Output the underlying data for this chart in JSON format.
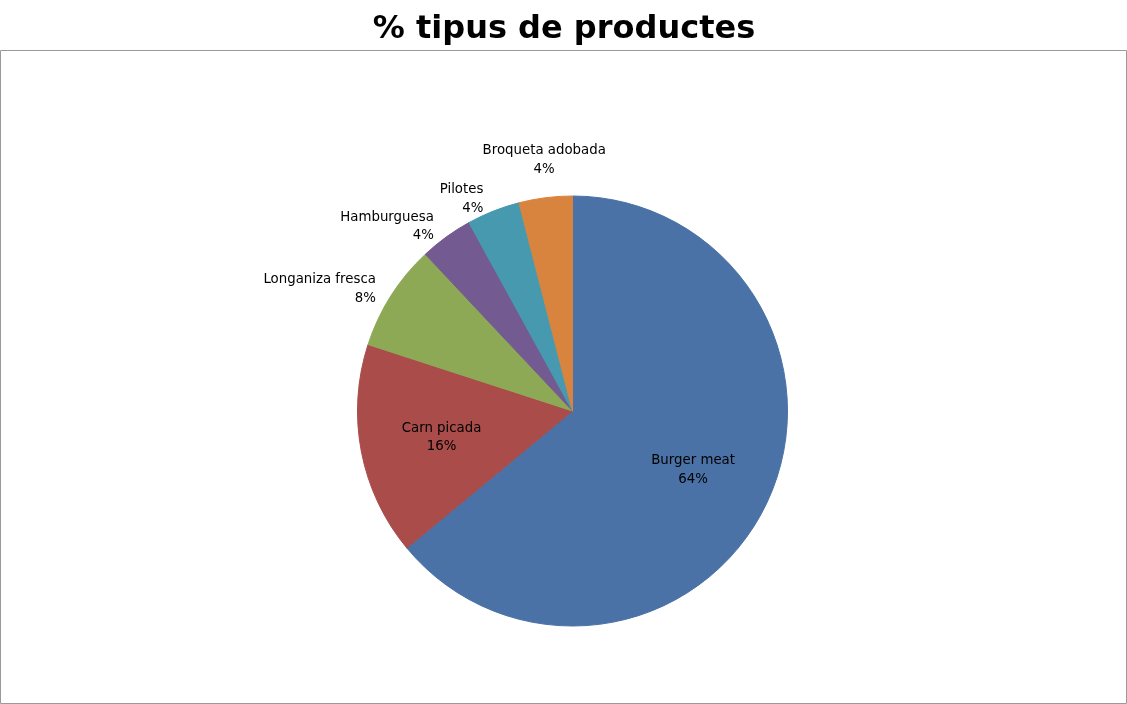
{
  "chart_data": {
    "type": "pie",
    "title": "% tipus de productes",
    "categories": [
      "Burger meat",
      "Carn picada",
      "Longaniza fresca",
      "Hamburguesa",
      "Pilotes",
      "Broqueta adobada"
    ],
    "values": [
      64,
      16,
      8,
      4,
      4,
      4
    ],
    "value_labels": [
      "64%",
      "16%",
      "8%",
      "4%",
      "4%",
      "4%"
    ],
    "colors": [
      "#4a72a6",
      "#a94c4a",
      "#8ea956",
      "#735a91",
      "#4699ae",
      "#d8843f"
    ]
  }
}
